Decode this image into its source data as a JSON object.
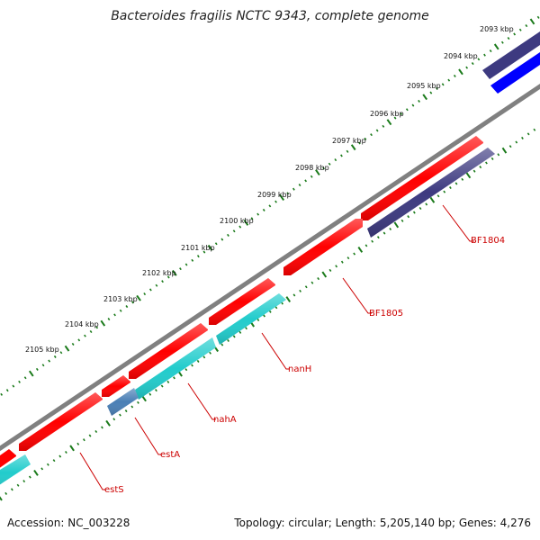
{
  "header": {
    "title": "Bacteroides fragilis NCTC 9343, complete genome"
  },
  "ruler": {
    "ticks": [
      "2093 kbp",
      "2094 kbp",
      "2095 kbp",
      "2096 kbp",
      "2097 kbp",
      "2098 kbp",
      "2099 kbp",
      "2100 kbp",
      "2101 kbp",
      "2102 kbp",
      "2103 kbp",
      "2104 kbp",
      "2105 kbp"
    ]
  },
  "genes": [
    {
      "label": "BF1804"
    },
    {
      "label": "BF1805"
    },
    {
      "label": "nanH"
    },
    {
      "label": "nahA"
    },
    {
      "label": "estA"
    },
    {
      "label": "estS"
    }
  ],
  "footer": {
    "accession": "Accession: NC_003228",
    "summary": "Topology: circular; Length: 5,205,140 bp; Genes: 4,276"
  },
  "colors": {
    "backbone": "#808080",
    "gene_red": "#ff0000",
    "gene_cyan": "#22cccc",
    "gene_navy": "#3d3a80",
    "gene_blue": "#0000ff",
    "gene_steel": "#4a7fb5",
    "tick_green": "#1a7a1a",
    "label_red": "#cc0000"
  }
}
